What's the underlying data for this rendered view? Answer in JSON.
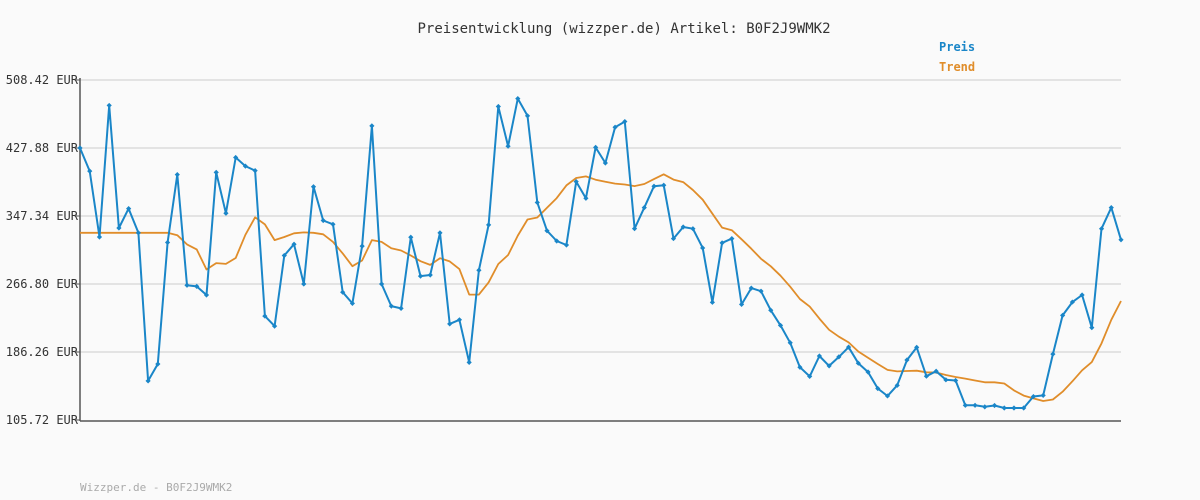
{
  "chart_data": {
    "type": "line",
    "title": "Preisentwicklung (wizzper.de) Artikel: B0F2J9WMK2",
    "footer": "Wizzper.de - B0F2J9WMK2",
    "yticks": [
      "508.42 EUR",
      "427.88 EUR",
      "347.34 EUR",
      "266.80 EUR",
      "186.26 EUR",
      "105.72 EUR"
    ],
    "ylim": [
      105.72,
      508.42
    ],
    "grid": true,
    "legend_position": "top-right",
    "series": [
      {
        "name": "Preis",
        "color": "#1a86c8",
        "values": [
          427.9,
          400.5,
          322.5,
          478.3,
          333.1,
          356.1,
          327.4,
          152.0,
          172.0,
          316.0,
          396.4,
          265.3,
          264.0,
          253.8,
          399.0,
          350.6,
          416.6,
          406.4,
          401.1,
          228.8,
          216.9,
          300.6,
          313.9,
          266.8,
          382.0,
          342.0,
          337.5,
          257.1,
          243.8,
          311.7,
          454.1,
          266.8,
          240.6,
          237.9,
          322.2,
          276.1,
          277.5,
          327.4,
          219.5,
          224.4,
          174.0,
          283.1,
          336.8,
          477.0,
          430.0,
          486.4,
          466.0,
          363.4,
          329.9,
          317.7,
          313.0,
          388.1,
          368.3,
          428.6,
          410.1,
          452.5,
          459.2,
          332.4,
          357.3,
          382.6,
          383.8,
          320.6,
          334.3,
          332.3,
          309.5,
          245.1,
          315.5,
          320.6,
          242.6,
          261.9,
          258.3,
          235.7,
          217.8,
          197.2,
          168.2,
          157.4,
          181.5,
          169.8,
          180.5,
          192.0,
          173.0,
          162.6,
          143.0,
          134.2,
          146.8,
          176.8,
          191.7,
          157.6,
          163.5,
          153.3,
          152.5,
          123.1,
          123.1,
          121.3,
          122.9,
          119.9,
          119.9,
          119.9,
          133.5,
          134.9,
          183.8,
          229.6,
          245.4,
          253.8,
          215.1,
          332.3,
          357.3,
          319.2
        ],
        "marker": "diamond"
      },
      {
        "name": "Trend",
        "color": "#e08d2a",
        "values": [
          327.4,
          327.4,
          327.4,
          327.4,
          327.4,
          327.4,
          327.4,
          327.4,
          327.4,
          327.4,
          324.6,
          313.7,
          307.8,
          284.0,
          291.6,
          290.6,
          297.6,
          325.1,
          345.8,
          337.4,
          318.8,
          322.5,
          326.9,
          327.9,
          327.4,
          325.7,
          316.7,
          303.0,
          287.9,
          294.6,
          318.8,
          316.7,
          309.1,
          306.5,
          300.6,
          293.8,
          289.4,
          297.4,
          293.6,
          284.5,
          254.3,
          254.3,
          268.7,
          290.5,
          301.2,
          324.1,
          343.2,
          345.6,
          357.2,
          368.6,
          383.6,
          392.4,
          394.3,
          390.3,
          387.9,
          385.7,
          384.6,
          382.8,
          385.2,
          391.1,
          396.7,
          390.4,
          387.5,
          378.1,
          366.7,
          350.1,
          333.6,
          330.5,
          319.7,
          308.6,
          296.6,
          287.8,
          276.6,
          263.6,
          249.0,
          240.0,
          225.8,
          212.5,
          204.4,
          197.6,
          186.9,
          179.4,
          172.0,
          165.0,
          163.3,
          163.8,
          164.1,
          162.2,
          162.0,
          159.0,
          156.6,
          154.7,
          152.5,
          150.4,
          150.4,
          149.0,
          140.8,
          134.6,
          131.3,
          128.2,
          130.0,
          139.2,
          151.6,
          164.6,
          174.3,
          196.4,
          224.4,
          246.7
        ]
      }
    ]
  }
}
